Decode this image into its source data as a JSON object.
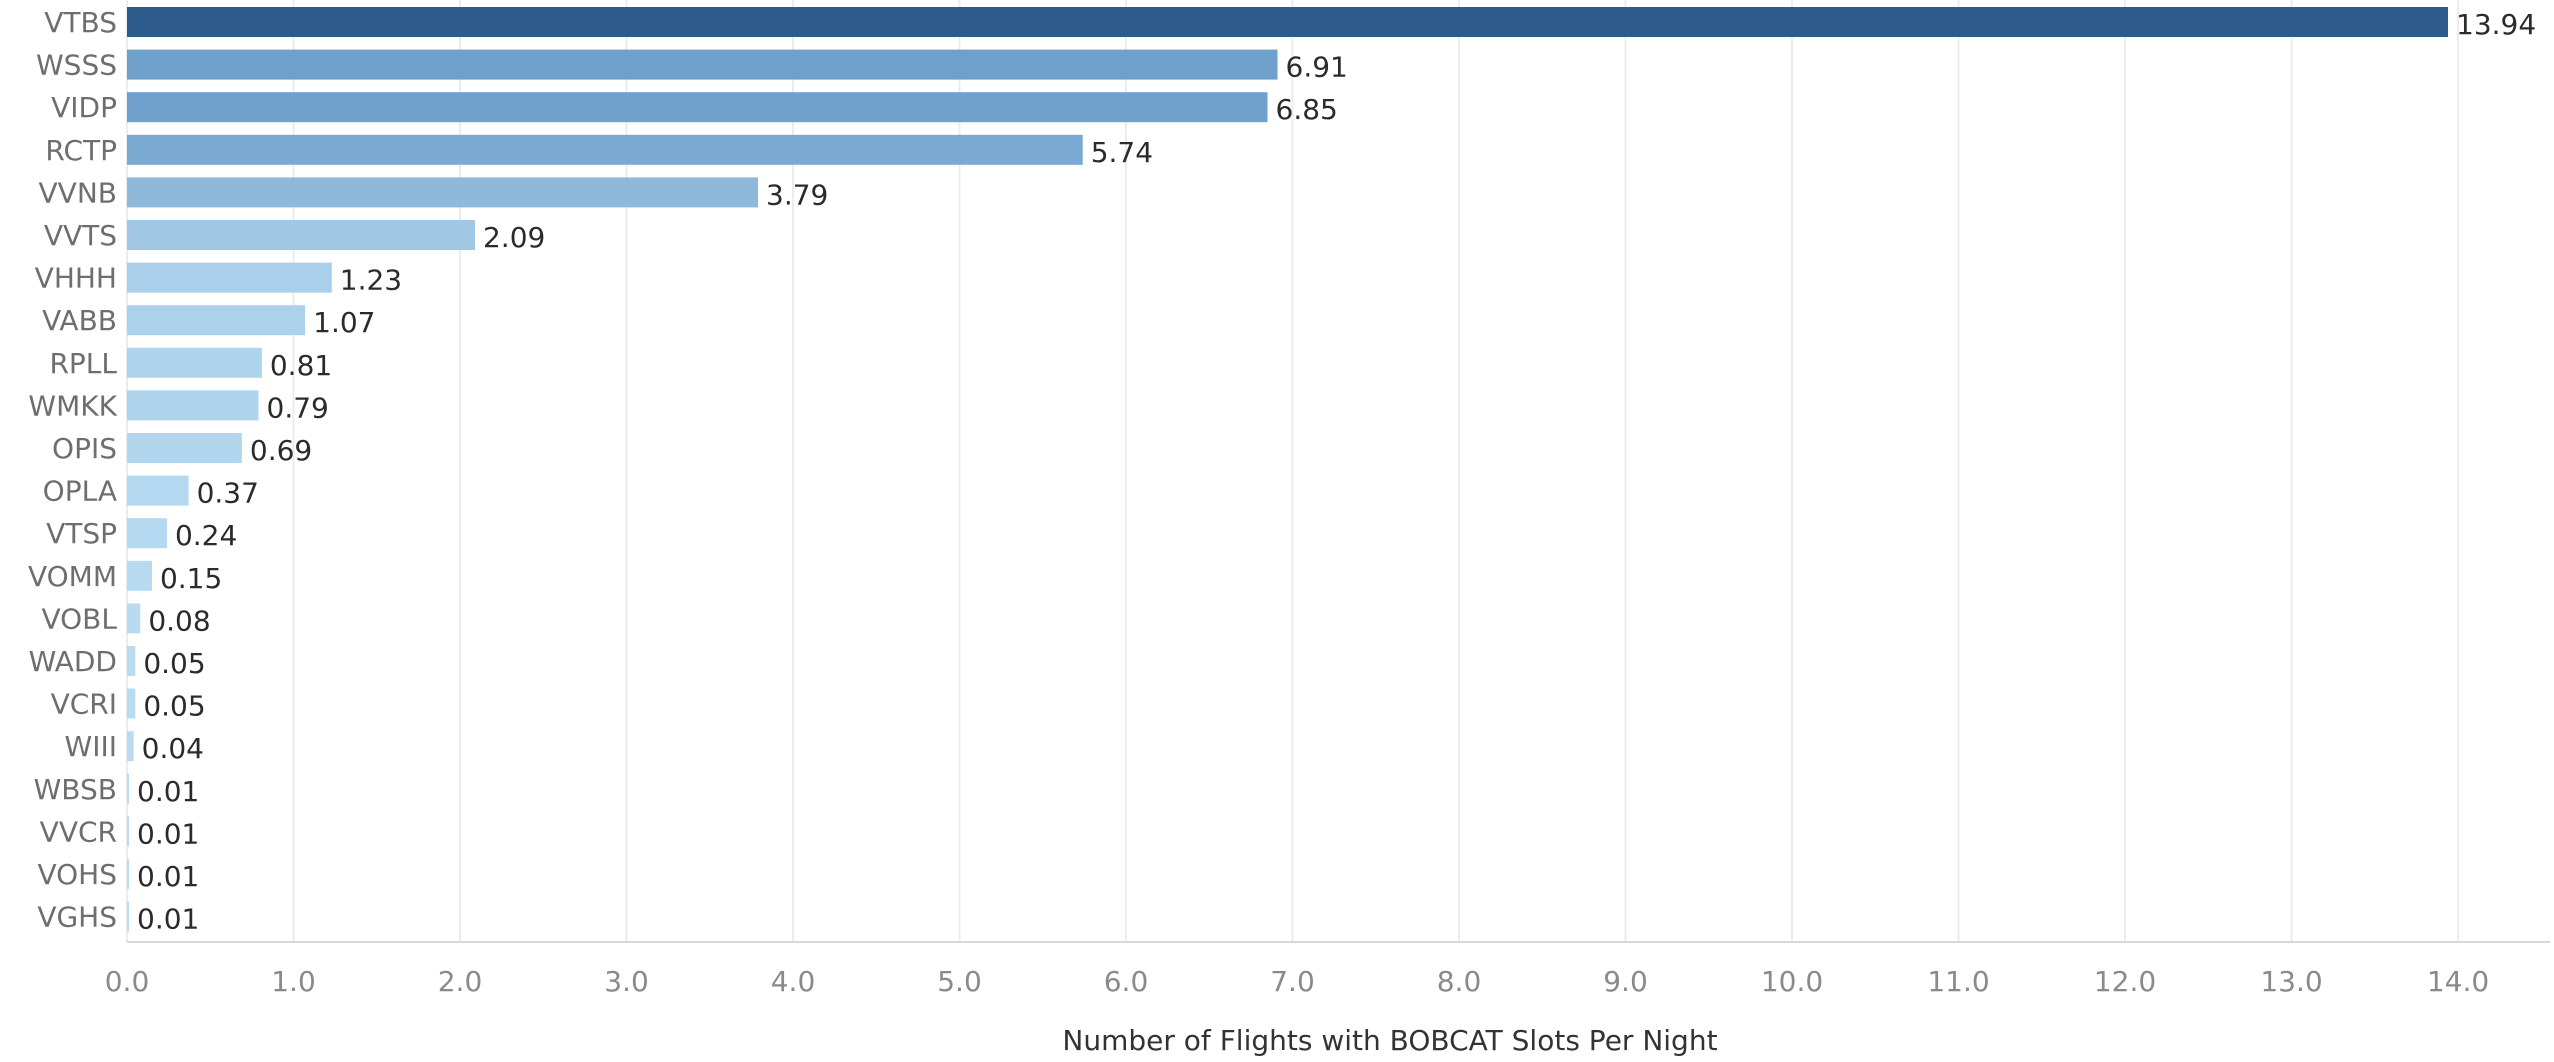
{
  "chart_data": {
    "type": "bar",
    "orientation": "horizontal",
    "title": "",
    "xlabel": "Number of Flights with BOBCAT Slots Per Night",
    "ylabel": "",
    "xlim": [
      0,
      14.5
    ],
    "xticks": [
      0,
      1,
      2,
      3,
      4,
      5,
      6,
      7,
      8,
      9,
      10,
      11,
      12,
      13,
      14
    ],
    "tick_labels": [
      "0.0",
      "1.0",
      "2.0",
      "3.0",
      "4.0",
      "5.0",
      "6.0",
      "7.0",
      "8.0",
      "9.0",
      "10.0",
      "11.0",
      "12.0",
      "13.0",
      "14.0"
    ],
    "grid": "vertical",
    "categories": [
      "VTBS",
      "WSSS",
      "VIDP",
      "RCTP",
      "VVNB",
      "VVTS",
      "VHHH",
      "VABB",
      "RPLL",
      "WMKK",
      "OPIS",
      "OPLA",
      "VTSP",
      "VOMM",
      "VOBL",
      "WADD",
      "VCRI",
      "WIII",
      "WBSB",
      "VVCR",
      "VOHS",
      "VGHS"
    ],
    "values": [
      13.94,
      6.91,
      6.85,
      5.74,
      3.79,
      2.09,
      1.23,
      1.07,
      0.81,
      0.79,
      0.69,
      0.37,
      0.24,
      0.15,
      0.08,
      0.05,
      0.05,
      0.04,
      0.01,
      0.01,
      0.01,
      0.01
    ],
    "value_labels": [
      "13.94",
      "6.91",
      "6.85",
      "5.74",
      "3.79",
      "2.09",
      "1.23",
      "1.07",
      "0.81",
      "0.79",
      "0.69",
      "0.37",
      "0.24",
      "0.15",
      "0.08",
      "0.05",
      "0.05",
      "0.04",
      "0.01",
      "0.01",
      "0.01",
      "0.01"
    ],
    "color_scale": {
      "low": "#b9dcf2",
      "mid": "#6ea0cb",
      "high": "#2c5b8c"
    }
  }
}
